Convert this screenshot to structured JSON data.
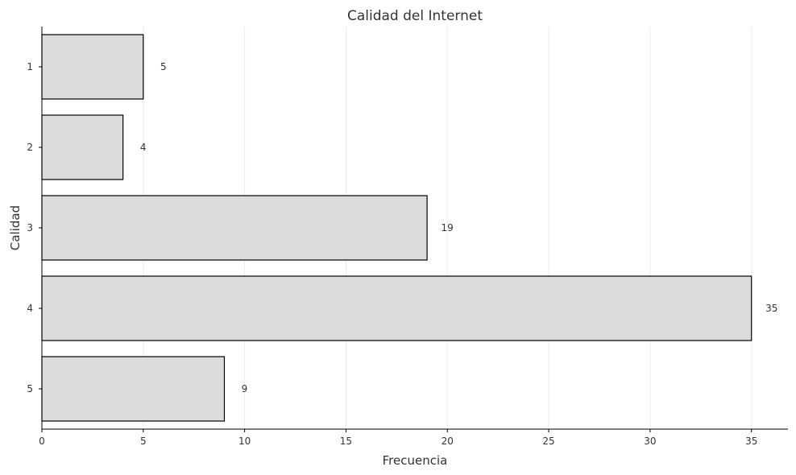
{
  "chart_data": {
    "type": "bar",
    "orientation": "horizontal",
    "title": "Calidad del Internet",
    "xlabel": "Frecuencia",
    "ylabel": "Calidad",
    "categories": [
      "1",
      "2",
      "3",
      "4",
      "5"
    ],
    "values": [
      5,
      4,
      19,
      35,
      9
    ],
    "data_labels": [
      "5",
      "4",
      "19",
      "35",
      "9"
    ],
    "x_ticks": [
      0,
      5,
      10,
      15,
      20,
      25,
      30,
      35
    ],
    "x_tick_labels": [
      "0",
      "5",
      "10",
      "15",
      "20",
      "25",
      "30",
      "35"
    ],
    "xlim": [
      0,
      36.8
    ],
    "grid": "x",
    "bar_fill": "#dcdcdc",
    "bar_edge": "#000000",
    "grid_color": "#ebebeb"
  }
}
